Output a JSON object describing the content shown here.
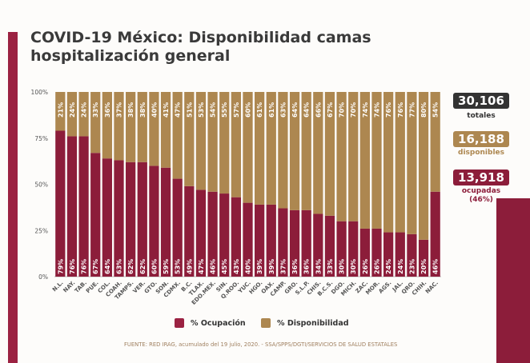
{
  "title": "COVID-19 México: Disponibilidad camas hospitalización general",
  "summary": {
    "totales_value": "30,106",
    "totales_label": "totales",
    "disponibles_value": "16,188",
    "disponibles_label": "disponibles",
    "ocupadas_value": "13,918",
    "ocupadas_label": "ocupadas (46%)"
  },
  "legend": {
    "ocupacion": "% Ocupación",
    "disponibilidad": "% Disponibilidad"
  },
  "source": "FUENTE: RED IRAG, acumulado del 19 julio, 2020. -  SSA/SPPS/DGTI/SERVICIOS DE SALUD ESTATALES",
  "colors": {
    "ocupacion": "#8c1d3a",
    "disponibilidad": "#ad8750",
    "totales": "#333333"
  },
  "chart_data": {
    "type": "bar",
    "stacked": true,
    "categories": [
      "N.L.",
      "NAY.",
      "TAB.",
      "PUE.",
      "COL.",
      "COAH.",
      "TAMPS.",
      "VER.",
      "GTO.",
      "SON.",
      "CDMX.",
      "B.C.",
      "TLAX.",
      "EDO.MEX.",
      "SIN.",
      "Q.ROO.",
      "YUC.",
      "HGO.",
      "OAX.",
      "CAMP.",
      "GRO.",
      "S.L.P.",
      "CHIS.",
      "B.C.S.",
      "DGO.",
      "MICH.",
      "ZAC.",
      "MOR.",
      "AGS.",
      "JAL.",
      "QRO.",
      "CHIH.",
      "NAC."
    ],
    "series": [
      {
        "name": "% Ocupación",
        "values": [
          79,
          76,
          76,
          67,
          64,
          63,
          62,
          62,
          60,
          59,
          53,
          49,
          47,
          46,
          45,
          43,
          40,
          39,
          39,
          37,
          36,
          36,
          34,
          33,
          30,
          30,
          26,
          26,
          24,
          24,
          23,
          20,
          46
        ]
      },
      {
        "name": "% Disponibilidad",
        "values": [
          21,
          24,
          24,
          33,
          36,
          37,
          38,
          38,
          40,
          41,
          47,
          51,
          53,
          54,
          55,
          57,
          60,
          61,
          61,
          63,
          64,
          64,
          66,
          67,
          70,
          70,
          74,
          74,
          76,
          76,
          77,
          80,
          54
        ]
      }
    ],
    "yticks": [
      "0%",
      "25%",
      "50%",
      "75%",
      "100%"
    ],
    "ylim": [
      0,
      100
    ],
    "legend_position": "bottom"
  }
}
